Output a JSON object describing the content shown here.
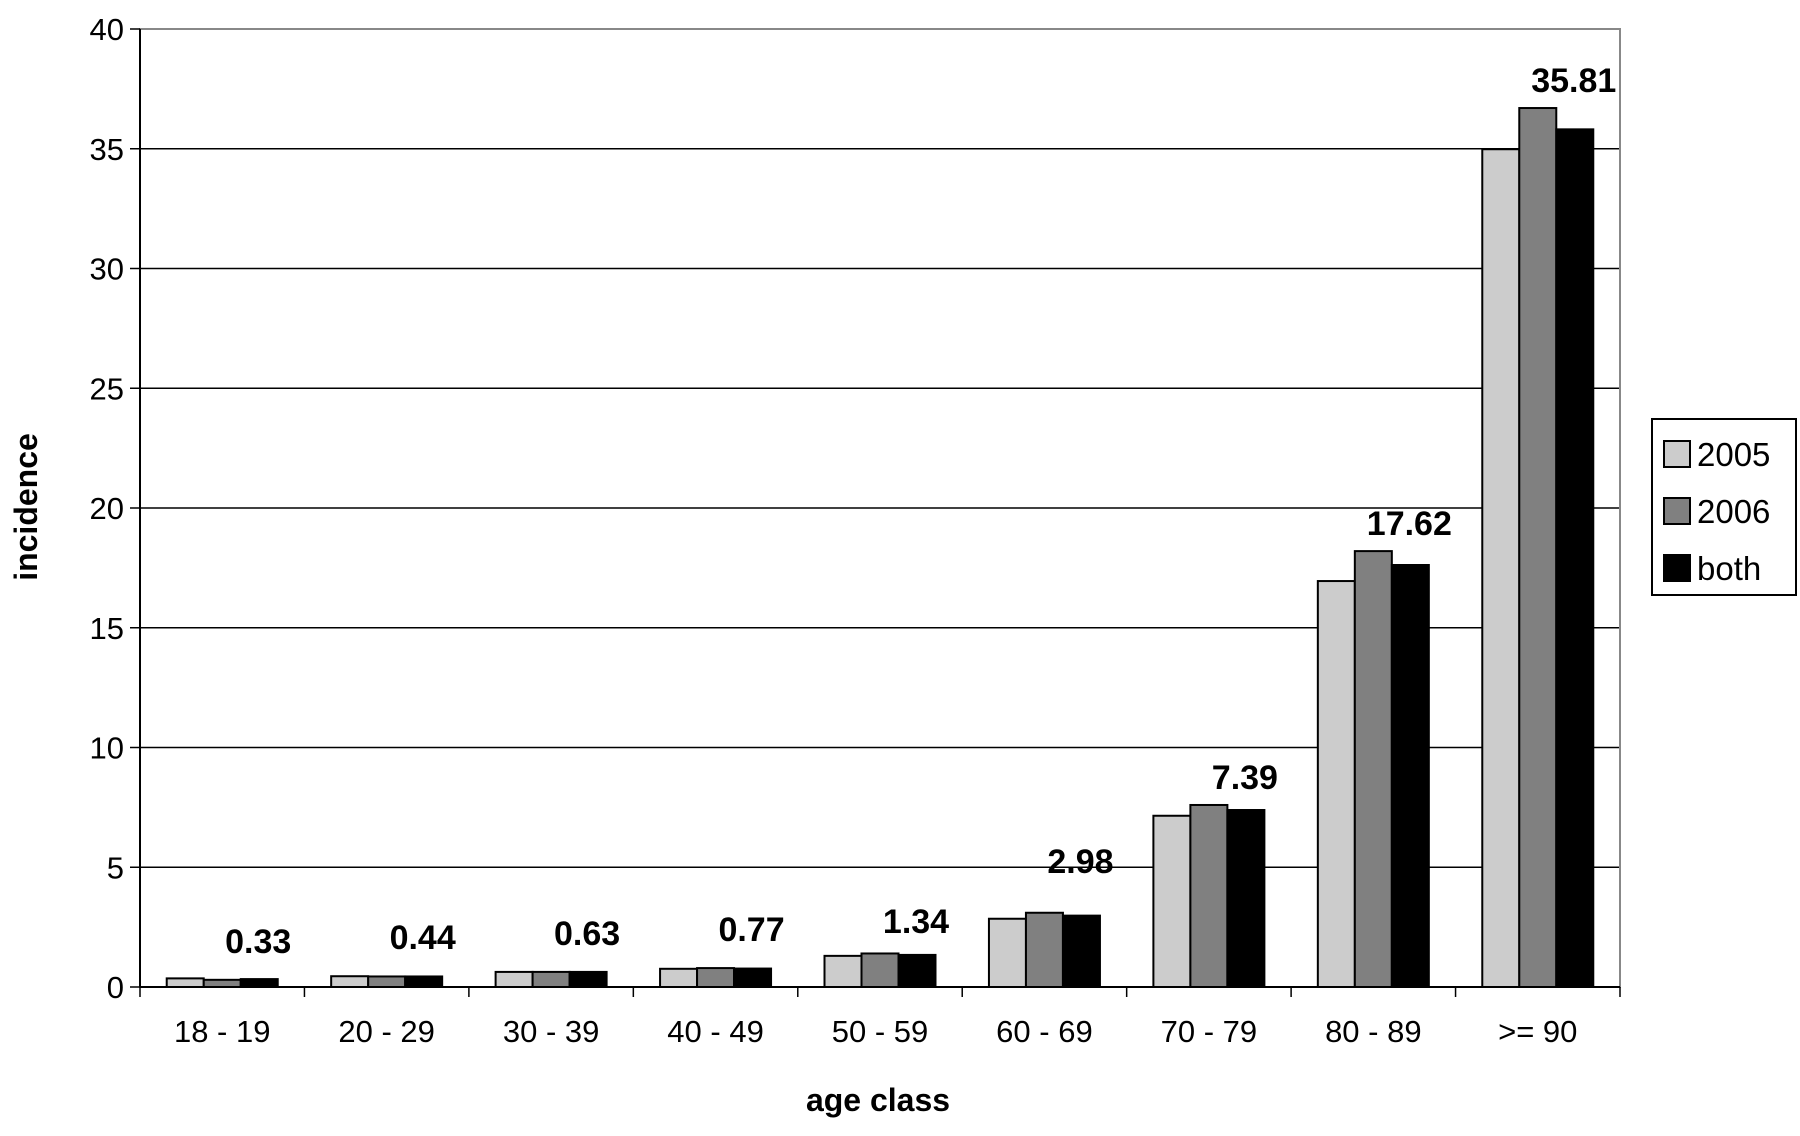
{
  "chart_data": {
    "type": "bar",
    "title": "",
    "xlabel": "age class",
    "ylabel": "incidence",
    "ylim": [
      0,
      40
    ],
    "yticks": [
      0,
      5,
      10,
      15,
      20,
      25,
      30,
      35,
      40
    ],
    "grid": "horizontal",
    "legend_position": "right",
    "categories": [
      "18 - 19",
      "20 - 29",
      "30 - 39",
      "40 - 49",
      "50 - 59",
      "60 - 69",
      "70 - 79",
      "80 - 89",
      ">= 90"
    ],
    "series": [
      {
        "name": "2005",
        "color": "#cccccc",
        "values": [
          0.36,
          0.45,
          0.63,
          0.76,
          1.3,
          2.85,
          7.15,
          16.95,
          34.98
        ]
      },
      {
        "name": "2006",
        "color": "#808080",
        "values": [
          0.3,
          0.44,
          0.63,
          0.79,
          1.4,
          3.1,
          7.6,
          18.2,
          36.7
        ]
      },
      {
        "name": "both",
        "color": "#000000",
        "values": [
          0.33,
          0.44,
          0.63,
          0.77,
          1.34,
          2.98,
          7.39,
          17.62,
          35.81
        ]
      }
    ],
    "data_labels": [
      "0.33",
      "0.44",
      "0.63",
      "0.77",
      "1.34",
      "2.98",
      "7.39",
      "17.62",
      "35.81"
    ]
  }
}
